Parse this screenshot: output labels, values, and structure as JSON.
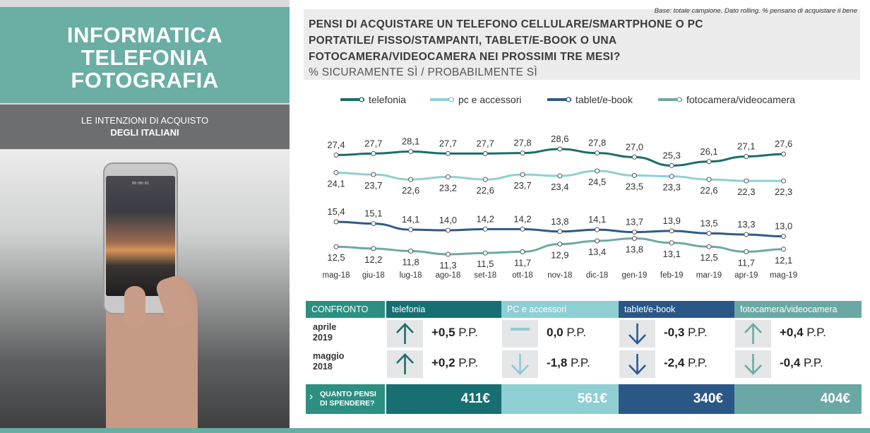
{
  "left_panel": {
    "title_lines": [
      "INFORMATICA",
      "TELEFONIA",
      "FOTOGRAFIA"
    ],
    "subtitle_line1": "LE INTENZIONI  DI ACQUISTO",
    "subtitle_line2": "DEGLI  ITALIANI",
    "phone_clock": "00:00:01"
  },
  "header": {
    "base_note": "Base: totale campione.  Dato rolling. % pensano di acquistare il bene",
    "question_lines": [
      "PENSI DI ACQUISTARE UN TELEFONO CELLULARE/SMARTPHONE O PC",
      "PORTATILE/ FISSO/STAMPANTI, TABLET/E-BOOK O UNA",
      "FOTOCAMERA/VIDEOCAMERA NEI PROSSIMI TRE MESI?"
    ],
    "measure": "% SICURAMENTE SÌ / PROBABILMENTE SÌ"
  },
  "chart_data": {
    "type": "line",
    "x": [
      "mag-18",
      "giu-18",
      "lug-18",
      "ago-18",
      "set-18",
      "ott-18",
      "nov-18",
      "dic-18",
      "gen-19",
      "feb-19",
      "mar-19",
      "apr-19",
      "mag-19"
    ],
    "legend_position": "top",
    "grid": false,
    "series": [
      {
        "name": "telefonia",
        "color": "#1b6e6a",
        "values": [
          27.4,
          27.7,
          28.1,
          27.7,
          27.7,
          27.8,
          28.6,
          27.8,
          27.0,
          25.3,
          26.1,
          27.1,
          27.6
        ],
        "labels": [
          "27,4",
          "27,7",
          "28,1",
          "27,7",
          "27,7",
          "27,8",
          "28,6",
          "27,8",
          "27,0",
          "25,3",
          "26,1",
          "27,1",
          "27,6"
        ]
      },
      {
        "name": "pc e accessori",
        "color": "#8dd0d4",
        "values": [
          24.1,
          23.7,
          22.6,
          23.2,
          22.6,
          23.7,
          23.4,
          24.5,
          23.5,
          23.3,
          22.6,
          22.3,
          22.3
        ],
        "labels": [
          "24,1",
          "23,7",
          "22,6",
          "23,2",
          "22,6",
          "23,7",
          "23,4",
          "24,5",
          "23,5",
          "23,3",
          "22,6",
          "22,3",
          "22,3"
        ]
      },
      {
        "name": "tablet/e-book",
        "color": "#2f5a8c",
        "values": [
          15.4,
          15.1,
          14.1,
          14.0,
          14.2,
          14.2,
          13.8,
          14.1,
          13.7,
          13.9,
          13.5,
          13.3,
          13.0
        ],
        "labels": [
          "15,4",
          "15,1",
          "14,1",
          "14,0",
          "14,2",
          "14,2",
          "13,8",
          "14,1",
          "13,7",
          "13,9",
          "13,5",
          "13,3",
          "13,0"
        ]
      },
      {
        "name": "fotocamera/videocamera",
        "color": "#6ea9a4",
        "values": [
          12.5,
          12.2,
          11.8,
          11.3,
          11.5,
          11.7,
          12.9,
          13.4,
          13.8,
          13.1,
          12.5,
          11.7,
          12.1
        ],
        "labels": [
          "12,5",
          "12,2",
          "11,8",
          "11,3",
          "11,5",
          "11,7",
          "12,9",
          "13,4",
          "13,8",
          "13,1",
          "12,5",
          "11,7",
          "12,1"
        ]
      }
    ]
  },
  "comparison": {
    "header_label": "CONFRONTO",
    "columns": [
      {
        "name": "telefonia",
        "color": "#176f72"
      },
      {
        "name": "PC e accessori",
        "color": "#8ecfd3"
      },
      {
        "name": "tablet/e-book",
        "color": "#2b5787"
      },
      {
        "name": "fotocamera/videocamera",
        "color": "#6aa8a5"
      }
    ],
    "rows": [
      {
        "label_line1": "aprile",
        "label_line2": "2019",
        "cells": [
          {
            "arrow": "up-arrow-icon",
            "arrow_color": "#1b6e6a",
            "number": "+0,5",
            "unit": "P.P."
          },
          {
            "arrow": "flat-dash-icon",
            "arrow_color": "#8dcbd1",
            "number": "0,0",
            "unit": "P.P."
          },
          {
            "arrow": "down-arrow-icon",
            "arrow_color": "#2f5a8c",
            "number": "-0,3",
            "unit": "P.P."
          },
          {
            "arrow": "up-arrow-icon",
            "arrow_color": "#6ea9a4",
            "number": "+0,4",
            "unit": "P.P."
          }
        ]
      },
      {
        "label_line1": "maggio",
        "label_line2": "2018",
        "cells": [
          {
            "arrow": "up-arrow-icon",
            "arrow_color": "#1b6e6a",
            "number": "+0,2",
            "unit": "P.P."
          },
          {
            "arrow": "down-arrow-icon",
            "arrow_color": "#8dcbd1",
            "number": "-1,8",
            "unit": "P.P."
          },
          {
            "arrow": "down-arrow-icon",
            "arrow_color": "#2f5a8c",
            "number": "-2,4",
            "unit": "P.P."
          },
          {
            "arrow": "down-arrow-icon",
            "arrow_color": "#6ea9a4",
            "number": "-0,4",
            "unit": "P.P."
          }
        ]
      }
    ],
    "spend": {
      "label_line1": "QUANTO PENSI",
      "label_line2": "DI SPENDERE?",
      "values": [
        "411€",
        "561€",
        "340€",
        "404€"
      ]
    }
  }
}
